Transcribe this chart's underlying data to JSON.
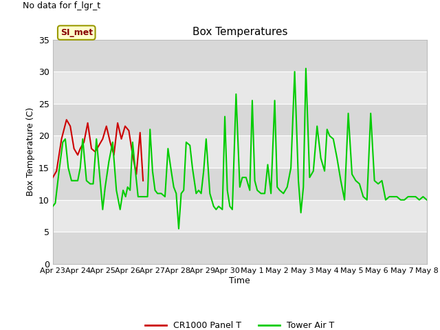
{
  "title": "Box Temperatures",
  "no_data_text": "No data for f_lgr_t",
  "si_met_label": "SI_met",
  "ylabel": "Box Temperature (C)",
  "xlabel": "Time",
  "ylim": [
    0,
    35
  ],
  "yticks": [
    0,
    5,
    10,
    15,
    20,
    25,
    30,
    35
  ],
  "background_color": "#ffffff",
  "plot_bg_light": "#e8e8e8",
  "plot_bg_dark": "#d8d8d8",
  "red_color": "#cc0000",
  "green_color": "#00cc00",
  "legend_entries": [
    "CR1000 Panel T",
    "Tower Air T"
  ],
  "tick_labels": [
    "Apr 23",
    "Apr 24",
    "Apr 25",
    "Apr 26",
    "Apr 27",
    "Apr 28",
    "Apr 29",
    "Apr 30",
    "May 1",
    "May 2",
    "May 3",
    "May 4",
    "May 5",
    "May 6",
    "May 7",
    "May 8"
  ],
  "red_x": [
    0.0,
    0.15,
    0.35,
    0.55,
    0.7,
    0.85,
    1.0,
    1.1,
    1.25,
    1.4,
    1.55,
    1.7,
    1.85,
    2.0,
    2.15,
    2.3,
    2.45,
    2.6,
    2.75,
    2.9,
    3.05,
    3.2,
    3.35,
    3.5,
    3.62
  ],
  "red_y": [
    13.5,
    14.5,
    19.5,
    22.5,
    21.5,
    18.0,
    17.0,
    18.0,
    19.0,
    22.0,
    18.0,
    17.5,
    18.5,
    19.5,
    21.5,
    19.0,
    17.0,
    22.0,
    19.5,
    21.5,
    20.8,
    17.0,
    14.0,
    20.5,
    13.0
  ],
  "green_x": [
    0.0,
    0.1,
    0.25,
    0.4,
    0.5,
    0.62,
    0.75,
    0.85,
    1.0,
    1.1,
    1.2,
    1.35,
    1.5,
    1.62,
    1.75,
    1.9,
    2.0,
    2.1,
    2.25,
    2.4,
    2.55,
    2.7,
    2.82,
    2.92,
    3.0,
    3.1,
    3.2,
    3.3,
    3.42,
    3.55,
    3.65,
    3.8,
    3.9,
    4.0,
    4.1,
    4.2,
    4.35,
    4.5,
    4.62,
    4.75,
    4.85,
    4.95,
    5.05,
    5.15,
    5.25,
    5.35,
    5.5,
    5.6,
    5.75,
    5.85,
    5.95,
    6.05,
    6.15,
    6.3,
    6.45,
    6.55,
    6.65,
    6.8,
    6.9,
    7.0,
    7.1,
    7.2,
    7.35,
    7.5,
    7.6,
    7.75,
    7.9,
    8.0,
    8.1,
    8.2,
    8.35,
    8.5,
    8.62,
    8.75,
    8.9,
    9.0,
    9.1,
    9.25,
    9.4,
    9.55,
    9.7,
    9.85,
    9.95,
    10.05,
    10.15,
    10.3,
    10.45,
    10.6,
    10.75,
    10.9,
    11.0,
    11.1,
    11.25,
    11.4,
    11.55,
    11.7,
    11.85,
    12.0,
    12.15,
    12.3,
    12.45,
    12.6,
    12.75,
    12.9,
    13.05,
    13.2,
    13.35,
    13.5,
    13.65,
    13.8,
    13.95,
    14.1,
    14.25,
    14.4,
    14.55,
    14.7,
    14.85,
    15.0
  ],
  "green_y": [
    9.0,
    9.5,
    14.5,
    19.0,
    19.5,
    15.0,
    13.0,
    13.0,
    13.0,
    15.0,
    19.5,
    13.0,
    12.5,
    12.5,
    19.5,
    13.0,
    8.5,
    12.0,
    16.0,
    19.0,
    11.5,
    8.5,
    11.5,
    10.5,
    12.0,
    11.5,
    19.0,
    15.0,
    10.5,
    10.5,
    10.5,
    10.5,
    21.0,
    14.5,
    11.5,
    11.0,
    11.0,
    10.5,
    18.0,
    14.5,
    12.0,
    11.0,
    5.5,
    11.0,
    11.5,
    19.0,
    18.5,
    15.0,
    11.0,
    11.5,
    11.0,
    14.5,
    19.5,
    11.0,
    9.0,
    8.5,
    9.0,
    8.5,
    23.0,
    11.5,
    9.0,
    8.5,
    26.5,
    12.0,
    13.5,
    13.5,
    11.5,
    25.5,
    13.0,
    11.5,
    11.0,
    11.0,
    15.5,
    11.0,
    25.5,
    12.0,
    11.5,
    11.0,
    12.0,
    15.0,
    30.0,
    13.0,
    8.0,
    12.0,
    30.5,
    13.5,
    14.5,
    21.5,
    16.5,
    14.5,
    21.0,
    20.0,
    19.5,
    16.5,
    13.0,
    10.0,
    23.5,
    14.0,
    13.0,
    12.5,
    10.5,
    10.0,
    23.5,
    13.0,
    12.5,
    13.0,
    10.0,
    10.5,
    10.5,
    10.5,
    10.0,
    10.0,
    10.5,
    10.5,
    10.5,
    10.0,
    10.5,
    10.0
  ]
}
